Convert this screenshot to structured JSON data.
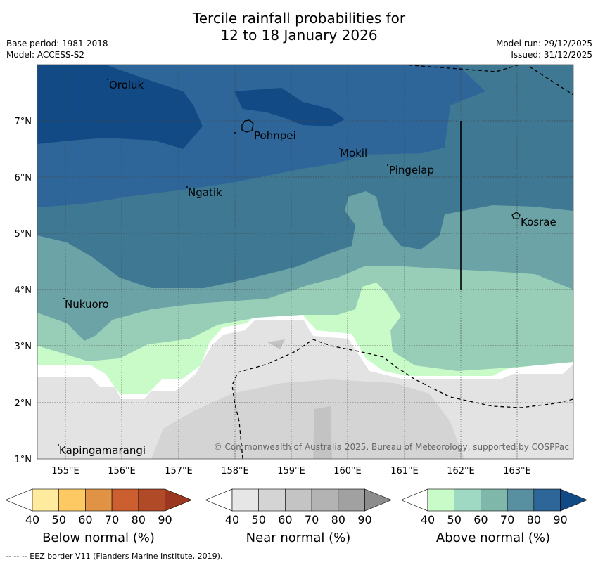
{
  "title": {
    "line1": "Tercile rainfall probabilities for",
    "line2": "12 to 18 January 2026"
  },
  "meta": {
    "base_period": "Base period: 1981-2018",
    "model": "Model: ACCESS-S2",
    "model_run": "Model run: 29/12/2025",
    "issued": "Issued: 31/12/2025"
  },
  "map": {
    "lat_labels": [
      "7°N",
      "6°N",
      "5°N",
      "4°N",
      "3°N",
      "2°N",
      "1°N"
    ],
    "lon_labels": [
      "155°E",
      "156°E",
      "157°E",
      "158°E",
      "159°E",
      "160°E",
      "161°E",
      "162°E",
      "163°E"
    ],
    "places": [
      "Oroluk",
      "Pohnpei",
      "Mokil",
      "Pingelap",
      "Ngatik",
      "Kosrae",
      "Nukuoro",
      "Kapingamarangi"
    ],
    "copyright": "© Commonwealth of Australia 2025, Bureau of Meteorology, supported by COSPPac",
    "colors": {
      "above_90": "#124a85",
      "above_80": "#2e6699",
      "above_70": "#3e7893",
      "above_60": "#6ba3a6",
      "above_50": "#98ceb8",
      "above_40": "#c8fbc8",
      "near_50": "#e3e3e3",
      "near_60": "#d4d4d4",
      "near_70": "#c3c3c3"
    }
  },
  "colorbars": {
    "ticks": [
      "40",
      "50",
      "60",
      "70",
      "80",
      "90"
    ],
    "below": {
      "label": "Below normal (%)",
      "colors": [
        "#ffffff",
        "#ffeb9e",
        "#fdc963",
        "#e09345",
        "#cc5f2f",
        "#b04a27",
        "#9b3721"
      ]
    },
    "near": {
      "label": "Near normal (%)",
      "colors": [
        "#ffffff",
        "#e6e6e6",
        "#d4d4d4",
        "#c4c4c4",
        "#b3b3b3",
        "#a1a1a1",
        "#8c8c8c"
      ]
    },
    "above": {
      "label": "Above normal (%)",
      "colors": [
        "#ffffff",
        "#c8fbc8",
        "#a0d9c3",
        "#80b7ab",
        "#5890a2",
        "#2e6699",
        "#124a85"
      ]
    }
  },
  "footer": "--  --  -- EEZ border V11 (Flanders Marine Institute, 2019)."
}
